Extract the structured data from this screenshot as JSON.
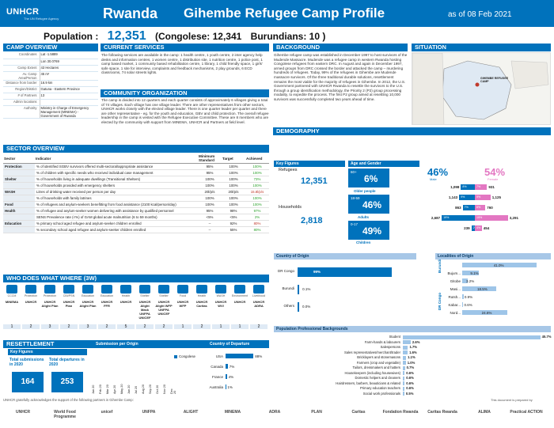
{
  "header": {
    "logo": "UNHCR",
    "logo_sub": "The UN Refugee Agency",
    "country": "Rwanda",
    "title": "Gihembe Refugee Camp Profile",
    "date": "as of  08 Feb 2021"
  },
  "population": {
    "label": "Population :",
    "total": "12,351",
    "congolese": "(Congolese: 12,341",
    "burundians": "Burundians: 10 )"
  },
  "camp_overview": {
    "title": "CAMP OVERVIEW",
    "rows": [
      {
        "k": "Coordinates",
        "v": "Lat -1.5889"
      },
      {
        "k": "",
        "v": "Lon 30.0769"
      },
      {
        "k": "Camp Extent",
        "v": "43 Hectares"
      },
      {
        "k": "Av. Camp Area/Person",
        "v": "45 m²"
      },
      {
        "k": "Distance from border",
        "v": "16.9 km"
      },
      {
        "k": "Region/District",
        "v": "Gatuna - Eastern Province"
      },
      {
        "k": "# of Partners",
        "v": "13"
      },
      {
        "k": "Admin locations",
        "v": ""
      },
      {
        "k": "Authority",
        "v": "Ministry in Charge of Emergency Management (MINEMA) - Government of Rwanda"
      }
    ]
  },
  "current_services": {
    "title": "CURRENT SERVICES",
    "text": "The following services are available in the camp: 1 health centre, 1 youth centre, 2 inter agency help desks and information centres, 1 women centre, 1 distribution site, 1 nutrition centre, 1 police post, 1 camp based market, 1 community based rehabilitation centre, 1 library, 1 child friendly space, 1 girls' safe space, 1 site for interview, complaints and feedback mechanisms, 2 play grounds, 6 ECD classrooms, 74 solar streets lights."
  },
  "community_org": {
    "title": "COMMUNITY ORGANIZATION",
    "text": "The camp is divided into 12 quarters and each quarter consists of approximately 6 villages giving a total of 74 villages. Each village has one village leader. There are other representatives from other sectors, UNHCR works closely with the elected village leader. There is one quarter leader per quarter and there are other representative - eg. for the youth and education, GBV and child protection. The overall refugee leadership in the camp is vested with the Refugee Executive Committee. These are 8 members who are elected by the community with support from MINEMA, UNHCR and Partners at field level."
  },
  "background": {
    "title": "BACKGROUND",
    "text": "Gihembe refugee camp was established in December 1997 to host survivors of the Mudende Massacre. Mudende was a refugee camp in western Rwanda hosting Congolese refugees from eastern DRC. In August and again in December 1997, armed groups from DRC crossed the border and attacked the camp – murdering hundreds of refugees. Today, 99% of the refugees in Gihembe are Mudende massacre survivors. Of the three traditional durable solutions, resettlement remains the most viable for the majority of refugees in Gihembe. In 2012, the U.S. Government partnered with UNHCR Rwanda to resettle the survivors to the U.S. through a group identification methodology, the Priority 2 (P2) group processing modality, to expedite the process. The first P2 group aimed at resettling 10,000 survivors was successfully completed two years ahead of time."
  },
  "situation": {
    "title": "SITUATION",
    "map_label": "GIHEMBE REFUGEE CAMP"
  },
  "sector_overview": {
    "title": "SECTOR OVERVIEW",
    "headers": [
      "Sector",
      "Indicator",
      "Minimum Standard",
      "Target",
      "Achieved"
    ],
    "rows": [
      {
        "sector": "Protection",
        "indicator": "% of identified SGBV survivors offered multi-sectoral/appropriate assistance",
        "min": "95%",
        "target": "100%",
        "achieved": "100%",
        "cls": "g"
      },
      {
        "sector": "",
        "indicator": "% of children with specific needs who received individual case management",
        "min": "95%",
        "target": "100%",
        "achieved": "100%",
        "cls": "g"
      },
      {
        "sector": "Shelter",
        "indicator": "% of households living in adequate dwellings (Transitional Shelters)",
        "min": "100%",
        "target": "100%",
        "achieved": "73%",
        "cls": "g"
      },
      {
        "sector": "",
        "indicator": "% of households provided with emergency shelters",
        "min": "100%",
        "target": "100%",
        "achieved": "100%",
        "cls": "g"
      },
      {
        "sector": "WASH",
        "indicator": "Litres of drinking water received per person per day",
        "min": "20l/p/s",
        "target": "20l/p/s",
        "achieved": "15.8l/p/s",
        "cls": "r"
      },
      {
        "sector": "",
        "indicator": "% of households with family latrines",
        "min": "100%",
        "target": "100%",
        "achieved": "100%",
        "cls": "g"
      },
      {
        "sector": "Food",
        "indicator": "% of refugees and asylum-seekers benefitting from food assistance (2100 kcal/person/day)",
        "min": "100%",
        "target": "100%",
        "achieved": "100%",
        "cls": "g"
      },
      {
        "sector": "Health",
        "indicator": "% of refugee and asylum-seeker women delivering with assistance by qualified personnel",
        "min": "95%",
        "target": "98%",
        "achieved": "97%",
        "cls": "g"
      },
      {
        "sector": "",
        "indicator": "SENS Prevalence rate (<%) of GAM global acute malnutrition (6 to 59 months)",
        "min": "<5%",
        "target": "<5%",
        "achieved": "2%",
        "cls": "g"
      },
      {
        "sector": "Education",
        "indicator": "% primary school aged refugee and asylum-seeker children enrolled",
        "min": "--",
        "target": "92%",
        "achieved": "80%",
        "cls": "r"
      },
      {
        "sector": "",
        "indicator": "% secondary school aged refugee and asylum-seeker children enrolled",
        "min": "--",
        "target": "55%",
        "achieved": "80%",
        "cls": "g"
      }
    ]
  },
  "www": {
    "title": "WHO DOES WHAT WHERE (3W)",
    "sectors": [
      "CCCM",
      "Protection",
      "Protection",
      "CBI/PSN",
      "Education",
      "Education",
      "Health",
      "Shelter",
      "Shelter",
      "Food",
      "Health",
      "WASH",
      "Environment",
      "Livelihood"
    ],
    "orgs": [
      "MINEMA",
      "UNHCR",
      "UNHCR Alight Plan",
      "UNHCR Plan",
      "UNHCR Alight Plan",
      "UNHCR FFR",
      "UNHCR",
      "UNHCR Alight Mask UNFPA UNICEF",
      "UNHCR Alight WFP UNFPA UNICEF",
      "UNHCR WFP",
      "UNHCR Caritas",
      "UNHCR WVI",
      "UNHCR",
      "UNHCR ADRA"
    ],
    "counts": [
      "1",
      "2",
      "3",
      "2",
      "3",
      "2",
      "5",
      "2",
      "2",
      "1",
      "2",
      "1",
      "1",
      "2"
    ]
  },
  "resettlement": {
    "title": "RESETTLEMENT",
    "key": "Key Figures",
    "sub_label": "Total submissions in 2020",
    "sub_val": "164",
    "dep_label": "Total departures in 2020",
    "dep_val": "253",
    "chart1_title": "Submission per Origin",
    "chart1_legend": "Congolese",
    "months": [
      "Jan 20",
      "Feb 20",
      "Mar 20",
      "Apr 20",
      "May 20",
      "Jun 20",
      "Jul 20",
      "Aug 20",
      "Sep 20",
      "Oct 20",
      "Nov 20",
      "Dec 20"
    ],
    "chart2_title": "Country of Departure",
    "countries": [
      "USA",
      "Canada",
      "France",
      "Australia"
    ],
    "dep_pct": [
      "88%",
      "7%",
      "4%",
      "1%"
    ]
  },
  "demography": {
    "title": "DEMOGRAPHY",
    "key": "Key Figures",
    "age_title": "Age and Gender",
    "refugees_label": "Refugees",
    "refugees_val": "12,351",
    "households_label": "Households",
    "households_val": "2,818",
    "older": "60+",
    "older_pct": "6%",
    "older_label": "Older people",
    "adults": "18-59",
    "adults_pct": "46%",
    "adults_label": "Adults",
    "children": "0-17",
    "children_pct": "49%",
    "children_label": "Children",
    "male_pct": "46%",
    "male_label": "Male",
    "female_pct": "54%",
    "female_label": "Female",
    "pyramid_left": [
      "1,098",
      "1,143",
      "863",
      "2,687",
      "239"
    ],
    "pyramid_mid": [
      "8%",
      "9%",
      "7%",
      "19%",
      "2%"
    ],
    "pyramid_mid_r": [
      "7%",
      "9%",
      "6%",
      "19%",
      "4%"
    ],
    "pyramid_right": [
      "931",
      "1,125",
      "760",
      "3,291",
      "454"
    ]
  },
  "country_origin": {
    "title": "Country of Origin",
    "rows": [
      {
        "name": "DR Congo",
        "pct": "99%"
      },
      {
        "name": "Burundi",
        "pct": "0.1%"
      },
      {
        "name": "Others",
        "pct": "0.0%"
      }
    ]
  },
  "localities": {
    "title": "Localities of Origin",
    "groups": [
      "Burundi",
      "DR Congo"
    ],
    "rows": [
      {
        "name": "",
        "pct": "41.0%"
      },
      {
        "name": "Bujum...",
        "pct": "9.1%"
      },
      {
        "name": "Gitobe",
        "pct": "3.2%"
      },
      {
        "name": "Masi...",
        "pct": "18.5%"
      },
      {
        "name": "Rutsh...",
        "pct": "0.9%"
      },
      {
        "name": "Kabar...",
        "pct": "0.6%"
      },
      {
        "name": "Nord...",
        "pct": "24.6%"
      }
    ]
  },
  "professional": {
    "title": "Population Professional Backgrounds",
    "rows": [
      {
        "name": "Student",
        "pct": "45.7%"
      },
      {
        "name": "Farm-hands & labourers",
        "pct": "2.6%"
      },
      {
        "name": "Salespersons",
        "pct": "1.7%"
      },
      {
        "name": "Sales representatives/merchant/trader",
        "pct": "1.6%"
      },
      {
        "name": "Bricklayers and stonemasons",
        "pct": "1.1%"
      },
      {
        "name": "Farmers (crop and vegetable)",
        "pct": "1.0%"
      },
      {
        "name": "Tailors, dressmakers and hatters",
        "pct": "0.7%"
      },
      {
        "name": "Housekeepers (including housewives)",
        "pct": "0.6%"
      },
      {
        "name": "Domestic helpers and cleaners",
        "pct": "0.6%"
      },
      {
        "name": "Hairdressers, barbers, beauticians & related",
        "pct": "0.6%"
      },
      {
        "name": "Primary education teachers",
        "pct": "0.6%"
      },
      {
        "name": "Social work professionals",
        "pct": "0.5%"
      }
    ]
  },
  "footer": {
    "ack": "UNHCR gratefully acknowledges the support of the following partners in Gihembe Camp:",
    "prepared": "This document is prepared by",
    "partners": [
      "UNHCR",
      "World Food Programme",
      "unicef",
      "UNFPA",
      "ALIGHT",
      "MINEMA",
      "ADRA",
      "PLAN",
      "Caritas",
      "Fondation Rwanda",
      "Caritas Rwanda",
      "ALIMA",
      "Practical ACTION"
    ]
  }
}
